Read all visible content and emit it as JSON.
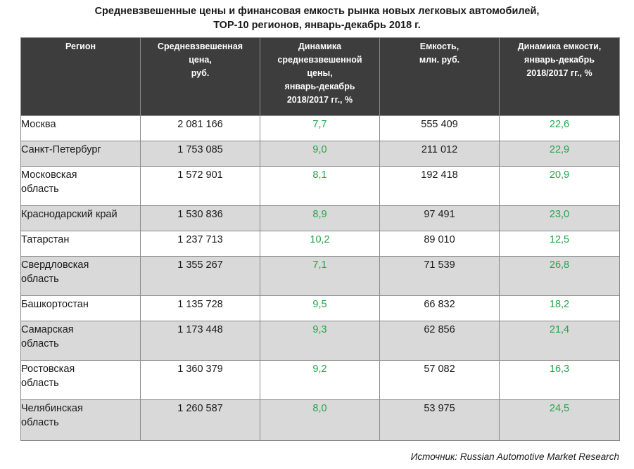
{
  "title": {
    "line1": "Средневзвешенные цены и финансовая емкость рынка новых легковых автомобилей,",
    "line2": "ТОР-10 регионов, январь-декабрь 2018 г."
  },
  "table": {
    "headers": [
      [
        "Регион"
      ],
      [
        "Средневзвешенная",
        "цена,",
        "руб."
      ],
      [
        "Динамика",
        "средневзвешенной",
        "цены,",
        "январь-декабрь",
        "2018/2017 гг., %"
      ],
      [
        "Емкость,",
        "млн. руб."
      ],
      [
        "Динамика емкости,",
        "январь-декабрь",
        "2018/2017 гг., %"
      ]
    ],
    "rows": [
      {
        "region": [
          "Москва"
        ],
        "price": "2 081 166",
        "price_change": "7,7",
        "capacity": "555 409",
        "capacity_change": "22,6"
      },
      {
        "region": [
          "Санкт-Петербург"
        ],
        "price": "1 753 085",
        "price_change": "9,0",
        "capacity": "211 012",
        "capacity_change": "22,9"
      },
      {
        "region": [
          "Московская",
          "область"
        ],
        "price": "1 572 901",
        "price_change": "8,1",
        "capacity": "192 418",
        "capacity_change": "20,9"
      },
      {
        "region": [
          "Краснодарский край"
        ],
        "price": "1 530 836",
        "price_change": "8,9",
        "capacity": "97 491",
        "capacity_change": "23,0"
      },
      {
        "region": [
          "Татарстан"
        ],
        "price": "1 237 713",
        "price_change": "10,2",
        "capacity": "89 010",
        "capacity_change": "12,5"
      },
      {
        "region": [
          "Свердловская",
          "область"
        ],
        "price": "1 355 267",
        "price_change": "7,1",
        "capacity": "71 539",
        "capacity_change": "26,8"
      },
      {
        "region": [
          "Башкортостан"
        ],
        "price": "1 135 728",
        "price_change": "9,5",
        "capacity": "66 832",
        "capacity_change": "18,2"
      },
      {
        "region": [
          "Самарская",
          "область"
        ],
        "price": "1 173 448",
        "price_change": "9,3",
        "capacity": "62 856",
        "capacity_change": "21,4"
      },
      {
        "region": [
          "Ростовская",
          "область"
        ],
        "price": "1 360 379",
        "price_change": "9,2",
        "capacity": "57 082",
        "capacity_change": "16,3"
      },
      {
        "region": [
          "Челябинская",
          "область"
        ],
        "price": "1 260 587",
        "price_change": "8,0",
        "capacity": "53 975",
        "capacity_change": "24,5"
      }
    ]
  },
  "source": "Источник: Russian Automotive Market Research",
  "colors": {
    "header_bg": "#3d3d3d",
    "header_text": "#ffffff",
    "shaded_row": "#d9d9d9",
    "change_value": "#22a64a"
  }
}
